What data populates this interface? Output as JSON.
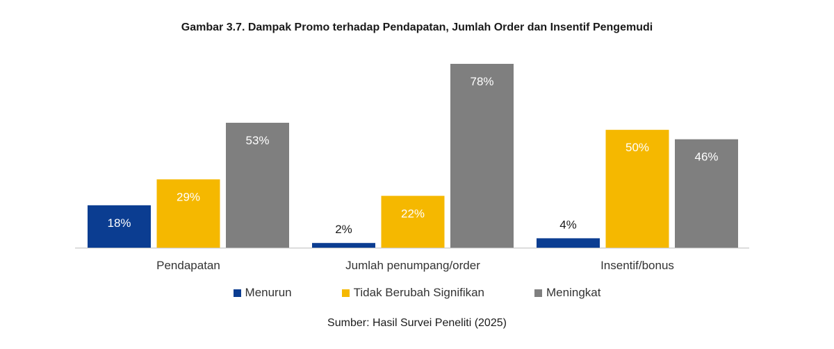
{
  "chart_data": {
    "type": "bar",
    "title": "Gambar 3.7. Dampak Promo terhadap Pendapatan, Jumlah Order dan Insentif Pengemudi",
    "categories": [
      "Pendapatan",
      "Jumlah penumpang/order",
      "Insentif/bonus"
    ],
    "series": [
      {
        "name": "Menurun",
        "values": [
          18,
          2,
          4
        ],
        "labels": [
          "18%",
          "2%",
          "4%"
        ],
        "color": "#0b3d91"
      },
      {
        "name": "Tidak Berubah Signifikan",
        "values": [
          29,
          22,
          50
        ],
        "labels": [
          "29%",
          "22%",
          "50%"
        ],
        "color": "#f5b800"
      },
      {
        "name": "Meningkat",
        "values": [
          53,
          78,
          46
        ],
        "labels": [
          "53%",
          "78%",
          "46%"
        ],
        "color": "#7f7f7f"
      }
    ],
    "ylim": [
      0,
      78
    ],
    "grid": false,
    "legend_position": "bottom",
    "source": "Sumber: Hasil Survei Peneliti (2025)"
  }
}
